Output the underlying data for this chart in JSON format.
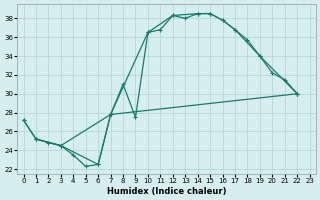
{
  "xlabel": "Humidex (Indice chaleur)",
  "xlim": [
    -0.5,
    23.5
  ],
  "ylim": [
    21.5,
    39.5
  ],
  "xticks": [
    0,
    1,
    2,
    3,
    4,
    5,
    6,
    7,
    8,
    9,
    10,
    11,
    12,
    13,
    14,
    15,
    16,
    17,
    18,
    19,
    20,
    21,
    22,
    23
  ],
  "yticks": [
    22,
    24,
    26,
    28,
    30,
    32,
    34,
    36,
    38
  ],
  "bg_color": "#d6eeee",
  "grid_color": "#b0d4d4",
  "line_color": "#1a7a6e",
  "curve1_x": [
    0,
    1,
    2,
    3,
    4,
    5,
    6,
    7,
    8,
    9,
    10,
    11,
    12,
    13,
    14,
    15,
    16,
    17,
    18,
    19,
    20,
    21,
    22
  ],
  "curve1_y": [
    27.2,
    25.2,
    24.8,
    24.5,
    23.5,
    22.3,
    22.5,
    27.8,
    31.0,
    27.5,
    36.5,
    36.8,
    38.3,
    38.0,
    38.5,
    38.5,
    37.8,
    36.8,
    35.7,
    34.0,
    32.2,
    31.5,
    30.0
  ],
  "curve2_x": [
    0,
    1,
    3,
    7,
    10,
    12,
    14,
    15,
    16,
    17,
    19,
    22
  ],
  "curve2_y": [
    27.2,
    25.2,
    24.5,
    27.8,
    36.5,
    38.3,
    38.5,
    38.5,
    37.8,
    36.8,
    34.0,
    30.0
  ],
  "curve3_x": [
    1,
    3,
    6,
    7,
    22
  ],
  "curve3_y": [
    25.2,
    24.5,
    22.5,
    27.8,
    30.0
  ]
}
